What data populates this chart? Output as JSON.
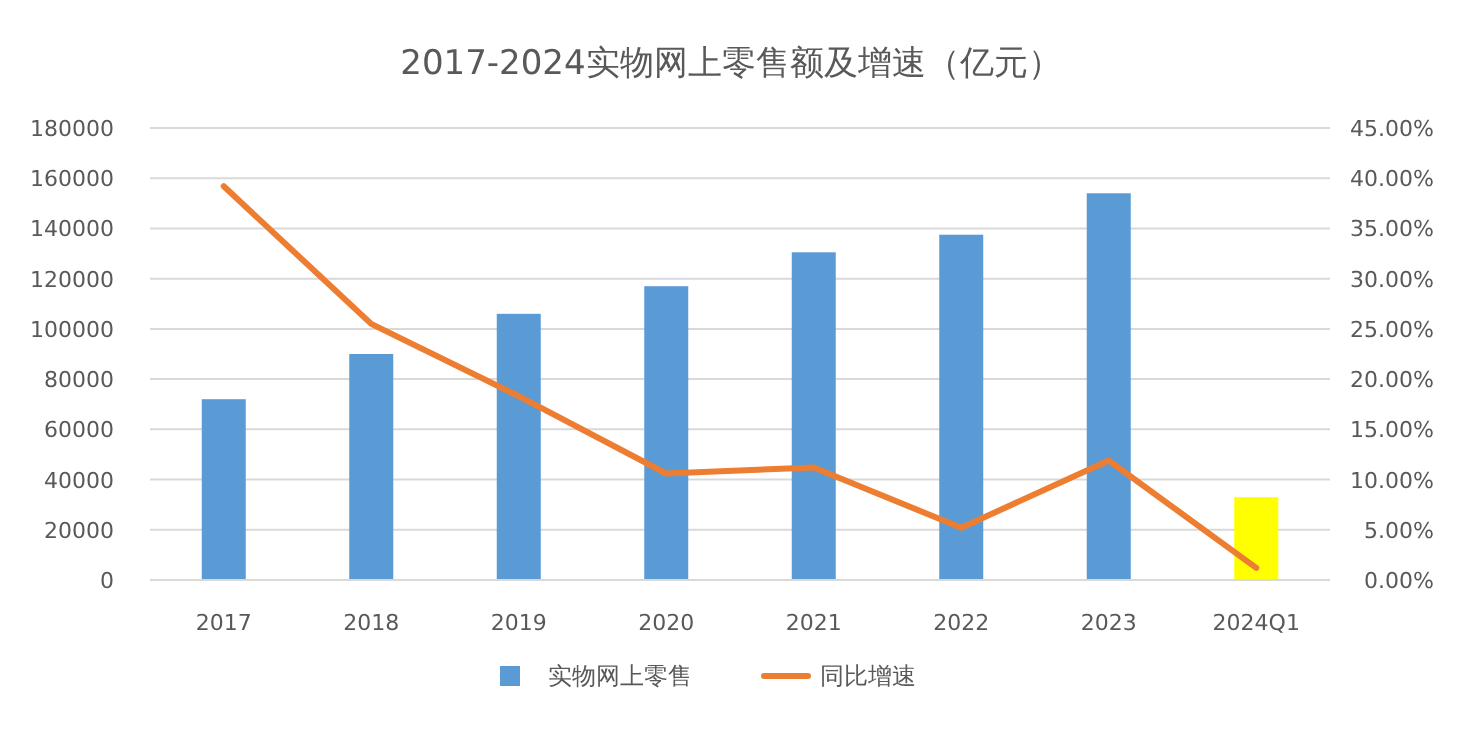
{
  "chart_data": {
    "type": "bar",
    "title": "2017-2024实物网上零售额及增速（亿元）",
    "categories": [
      "2017",
      "2018",
      "2019",
      "2020",
      "2021",
      "2022",
      "2023",
      "2024Q1"
    ],
    "series": [
      {
        "name": "实物网上零售",
        "color": "#5b9bd5",
        "colors": [
          "#5b9bd5",
          "#5b9bd5",
          "#5b9bd5",
          "#5b9bd5",
          "#5b9bd5",
          "#5b9bd5",
          "#5b9bd5",
          "#ffff00"
        ],
        "values": [
          72000,
          90000,
          106000,
          117000,
          130500,
          137500,
          154000,
          33000
        ]
      },
      {
        "name": "同比增速",
        "type": "line",
        "axis": "y2",
        "color": "#ed7d31",
        "values": [
          39.2,
          25.5,
          18.3,
          10.6,
          11.2,
          5.2,
          11.9,
          1.2
        ]
      }
    ],
    "ylim": [
      0,
      180000
    ],
    "yticks": [
      0,
      20000,
      40000,
      60000,
      80000,
      100000,
      120000,
      140000,
      160000,
      180000
    ],
    "y2lim": [
      0,
      45
    ],
    "y2ticks": [
      {
        "value": 0,
        "label": "0.00%"
      },
      {
        "value": 5,
        "label": "5.00%"
      },
      {
        "value": 10,
        "label": "10.00%"
      },
      {
        "value": 15,
        "label": "15.00%"
      },
      {
        "value": 20,
        "label": "20.00%"
      },
      {
        "value": 25,
        "label": "25.00%"
      },
      {
        "value": 30,
        "label": "30.00%"
      },
      {
        "value": 35,
        "label": "35.00%"
      },
      {
        "value": 40,
        "label": "40.00%"
      },
      {
        "value": 45,
        "label": "45.00%"
      }
    ],
    "grid": "y",
    "legend": "bottom",
    "marker": "none",
    "line_style": "solid"
  }
}
